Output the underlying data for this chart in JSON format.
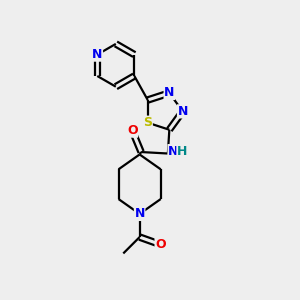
{
  "background_color": "#eeeeee",
  "bond_color": "#000000",
  "atom_colors": {
    "N": "#0000ee",
    "O": "#ee0000",
    "S": "#bbbb00",
    "C": "#000000",
    "H": "#008888"
  },
  "font_size": 9,
  "line_width": 1.6,
  "figsize": [
    3.0,
    3.0
  ],
  "dpi": 100
}
